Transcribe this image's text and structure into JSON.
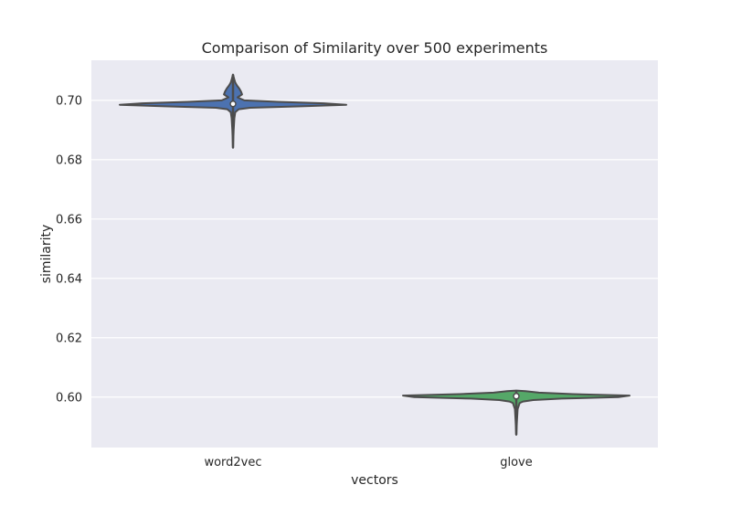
{
  "chart_data": {
    "type": "violin",
    "title": "Comparison of Similarity over 500 experiments",
    "xlabel": "vectors",
    "ylabel": "similarity",
    "categories": [
      "word2vec",
      "glove"
    ],
    "ylim": [
      0.583,
      0.7135
    ],
    "yticks": [
      0.6,
      0.62,
      0.64,
      0.66,
      0.68,
      0.7
    ],
    "ytick_labels": [
      "0.60",
      "0.62",
      "0.64",
      "0.66",
      "0.68",
      "0.70"
    ],
    "grid": true,
    "legend": "none",
    "background_color": "#EAEAF2",
    "grid_color": "#FFFFFF",
    "outline_color": "#4C4C4C",
    "series": [
      {
        "category": "word2vec",
        "color": "#4C72B0",
        "min": 0.684,
        "q1": 0.6982,
        "median": 0.6988,
        "q3": 0.6996,
        "max": 0.7087,
        "density": [
          [
            0.684,
            0.0
          ],
          [
            0.69,
            0.006
          ],
          [
            0.694,
            0.012
          ],
          [
            0.696,
            0.02
          ],
          [
            0.697,
            0.05
          ],
          [
            0.6975,
            0.15
          ],
          [
            0.698,
            0.6
          ],
          [
            0.6985,
            1.0
          ],
          [
            0.699,
            0.8
          ],
          [
            0.6995,
            0.4
          ],
          [
            0.7,
            0.1
          ],
          [
            0.701,
            0.04
          ],
          [
            0.7015,
            0.06
          ],
          [
            0.702,
            0.08
          ],
          [
            0.703,
            0.07
          ],
          [
            0.704,
            0.055
          ],
          [
            0.705,
            0.035
          ],
          [
            0.706,
            0.02
          ],
          [
            0.707,
            0.012
          ],
          [
            0.7087,
            0.0
          ]
        ]
      },
      {
        "category": "glove",
        "color": "#55A868",
        "min": 0.5873,
        "q1": 0.5995,
        "median": 0.6003,
        "q3": 0.6012,
        "max": 0.6022,
        "density": [
          [
            0.5873,
            0.0
          ],
          [
            0.592,
            0.006
          ],
          [
            0.596,
            0.012
          ],
          [
            0.598,
            0.03
          ],
          [
            0.5985,
            0.06
          ],
          [
            0.599,
            0.15
          ],
          [
            0.5995,
            0.4
          ],
          [
            0.6,
            0.9
          ],
          [
            0.6005,
            1.0
          ],
          [
            0.601,
            0.5
          ],
          [
            0.6015,
            0.2
          ],
          [
            0.602,
            0.08
          ],
          [
            0.6022,
            0.0
          ]
        ]
      }
    ]
  }
}
